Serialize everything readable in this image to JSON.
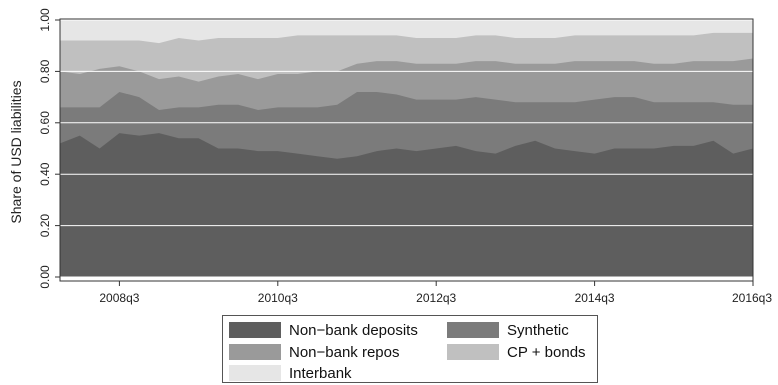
{
  "chart_data": {
    "type": "area",
    "stacked": true,
    "title": "",
    "xlabel": "",
    "ylabel": "Share of USD liabilities",
    "ylim": [
      0,
      1
    ],
    "yticks": [
      "0.00",
      "0.20",
      "0.40",
      "0.60",
      "0.80",
      "1.00"
    ],
    "xticks": [
      "2008q3",
      "2010q3",
      "2012q3",
      "2014q3",
      "2016q3"
    ],
    "x": [
      "2007q4",
      "2008q1",
      "2008q2",
      "2008q3",
      "2008q4",
      "2009q1",
      "2009q2",
      "2009q3",
      "2009q4",
      "2010q1",
      "2010q2",
      "2010q3",
      "2010q4",
      "2011q1",
      "2011q2",
      "2011q3",
      "2011q4",
      "2012q1",
      "2012q2",
      "2012q3",
      "2012q4",
      "2013q1",
      "2013q2",
      "2013q3",
      "2013q4",
      "2014q1",
      "2014q2",
      "2014q3",
      "2014q4",
      "2015q1",
      "2015q2",
      "2015q3",
      "2015q4",
      "2016q1",
      "2016q2",
      "2016q3"
    ],
    "cumulative": true,
    "grid": "horizontal",
    "legend_position": "bottom",
    "series": [
      {
        "name": "Non−bank deposits",
        "color": "#5e5e5e",
        "values": [
          0.52,
          0.55,
          0.5,
          0.56,
          0.55,
          0.56,
          0.54,
          0.54,
          0.5,
          0.5,
          0.49,
          0.49,
          0.48,
          0.47,
          0.46,
          0.47,
          0.49,
          0.5,
          0.49,
          0.5,
          0.51,
          0.49,
          0.48,
          0.51,
          0.53,
          0.5,
          0.49,
          0.48,
          0.5,
          0.5,
          0.5,
          0.51,
          0.51,
          0.53,
          0.48,
          0.5
        ]
      },
      {
        "name": "Synthetic",
        "color": "#7b7b7b",
        "values": [
          0.66,
          0.66,
          0.66,
          0.72,
          0.7,
          0.65,
          0.66,
          0.66,
          0.67,
          0.67,
          0.65,
          0.66,
          0.66,
          0.66,
          0.67,
          0.72,
          0.72,
          0.71,
          0.69,
          0.69,
          0.69,
          0.7,
          0.69,
          0.68,
          0.68,
          0.68,
          0.68,
          0.69,
          0.7,
          0.7,
          0.68,
          0.68,
          0.68,
          0.68,
          0.67,
          0.67
        ]
      },
      {
        "name": "Non−bank repos",
        "color": "#9a9a9a",
        "values": [
          0.8,
          0.79,
          0.81,
          0.82,
          0.8,
          0.77,
          0.78,
          0.76,
          0.78,
          0.79,
          0.77,
          0.79,
          0.79,
          0.8,
          0.8,
          0.83,
          0.84,
          0.84,
          0.83,
          0.83,
          0.83,
          0.84,
          0.84,
          0.83,
          0.83,
          0.83,
          0.84,
          0.84,
          0.84,
          0.84,
          0.83,
          0.83,
          0.84,
          0.84,
          0.84,
          0.85
        ]
      },
      {
        "name": "CP + bonds",
        "color": "#c0c0c0",
        "values": [
          0.92,
          0.92,
          0.92,
          0.92,
          0.92,
          0.91,
          0.93,
          0.92,
          0.93,
          0.93,
          0.93,
          0.93,
          0.94,
          0.94,
          0.94,
          0.94,
          0.94,
          0.94,
          0.93,
          0.93,
          0.93,
          0.94,
          0.94,
          0.93,
          0.93,
          0.93,
          0.94,
          0.94,
          0.94,
          0.94,
          0.94,
          0.94,
          0.94,
          0.95,
          0.95,
          0.95
        ]
      },
      {
        "name": "Interbank",
        "color": "#e6e6e6",
        "values": [
          1,
          1,
          1,
          1,
          1,
          1,
          1,
          1,
          1,
          1,
          1,
          1,
          1,
          1,
          1,
          1,
          1,
          1,
          1,
          1,
          1,
          1,
          1,
          1,
          1,
          1,
          1,
          1,
          1,
          1,
          1,
          1,
          1,
          1,
          1,
          1
        ]
      }
    ]
  }
}
